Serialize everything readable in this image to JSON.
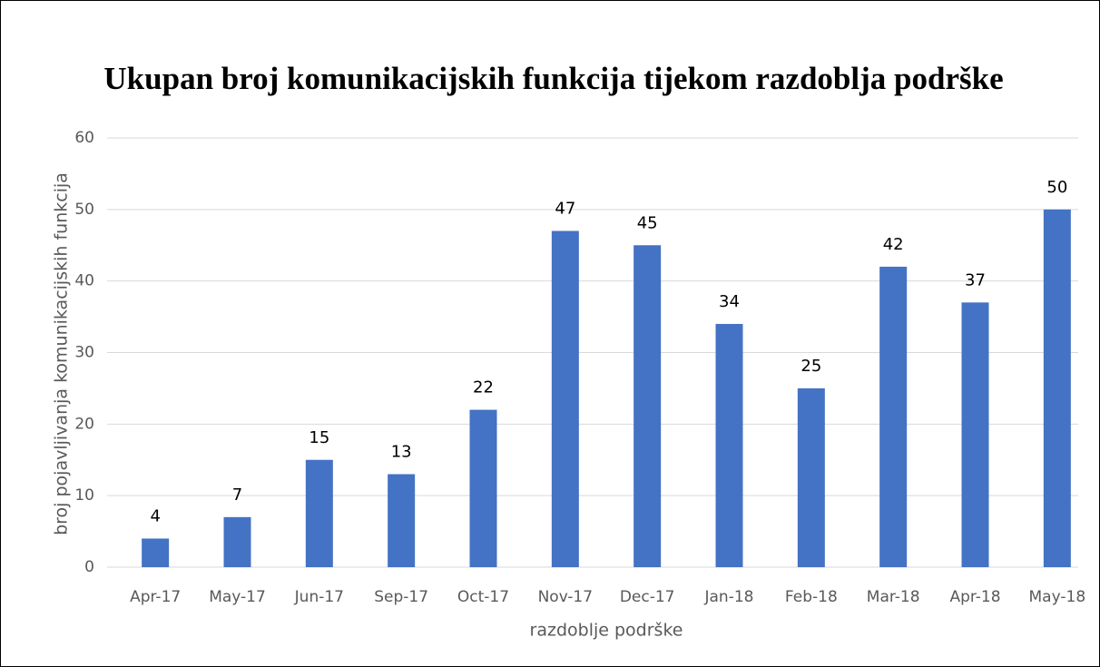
{
  "chart_data": {
    "type": "bar",
    "title": "Ukupan broj komunikacijskih funkcija tijekom razdoblja podrške",
    "x_label": "razdoblje podrške",
    "y_label": "broj pojavljivanja komunikacijskih funkcija",
    "categories": [
      "Apr-17",
      "May-17",
      "Jun-17",
      "Sep-17",
      "Oct-17",
      "Nov-17",
      "Dec-17",
      "Jan-18",
      "Feb-18",
      "Mar-18",
      "Apr-18",
      "May-18"
    ],
    "values": [
      4,
      7,
      15,
      13,
      22,
      47,
      45,
      34,
      25,
      42,
      37,
      50
    ],
    "color": "#4472c4",
    "ylim": [
      0,
      60
    ],
    "yticks": [
      0,
      10,
      20,
      30,
      40,
      50,
      60
    ],
    "grid": true,
    "data_labels": true
  }
}
